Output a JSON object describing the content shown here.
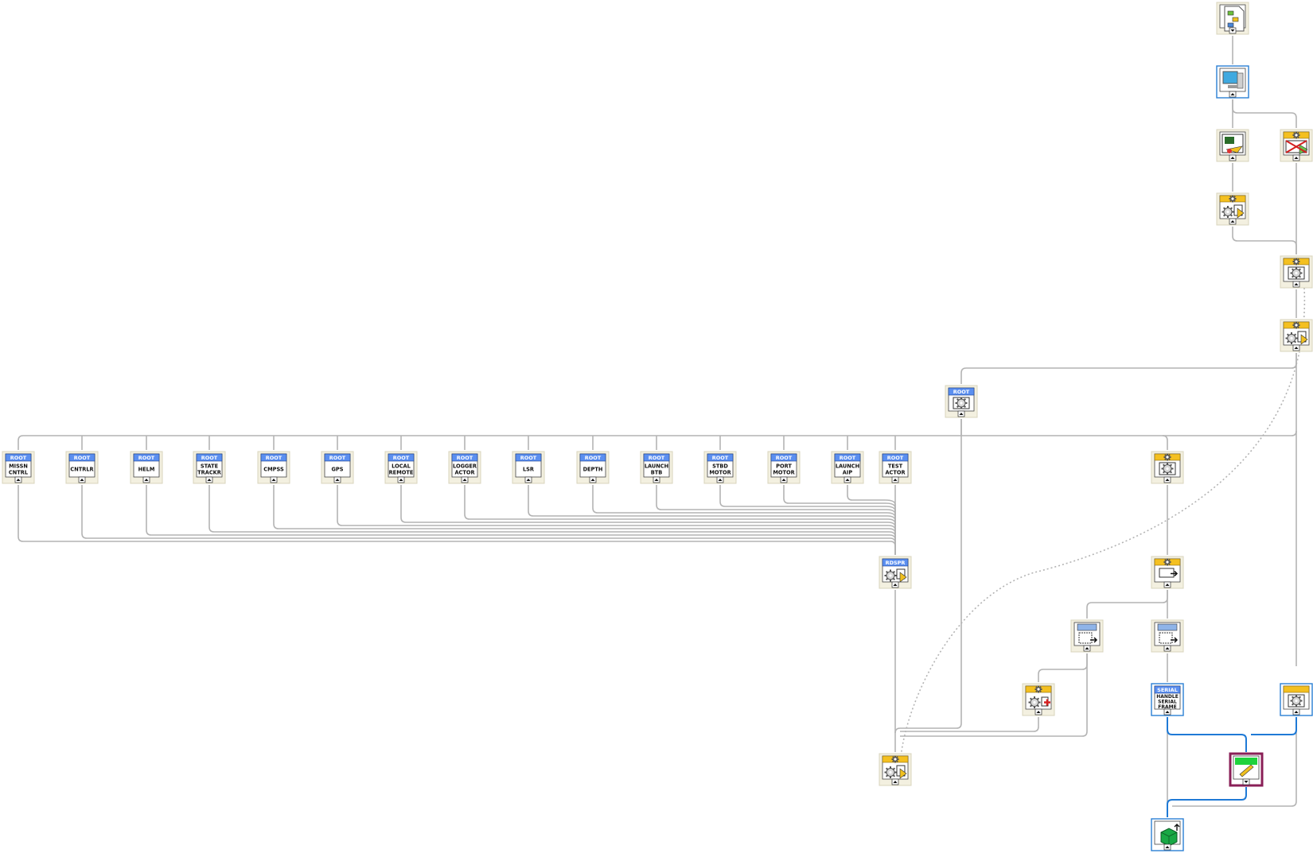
{
  "diagram": {
    "nodes": [
      {
        "id": "n-top-file",
        "label": "",
        "icon": "hierarchy-file-icon",
        "kind": "plain"
      },
      {
        "id": "n-monitor",
        "label": "",
        "icon": "monitor-icon",
        "kind": "blue-border"
      },
      {
        "id": "n-scope",
        "label": "",
        "icon": "scope-vi-icon",
        "kind": "plain"
      },
      {
        "id": "n-crossed",
        "label": "",
        "icon": "crossed-actor-icon",
        "kind": "yellow"
      },
      {
        "id": "n-gear-launch-a",
        "label": "",
        "icon": "gear-launch-icon",
        "kind": "yellow"
      },
      {
        "id": "n-gear-launch-b",
        "label": "",
        "icon": "gear-launch-icon",
        "kind": "yellow"
      },
      {
        "id": "n-gear-core",
        "label": "",
        "icon": "gear-core-icon",
        "kind": "yellow"
      },
      {
        "id": "n-root-mid",
        "header": "ROOT",
        "label": "",
        "icon": "gear-core-icon",
        "kind": "root"
      },
      {
        "id": "n-missn-cntrl",
        "header": "ROOT",
        "label": "MISSN CNTRL",
        "kind": "root"
      },
      {
        "id": "n-cntrlr",
        "header": "ROOT",
        "label": "CNTRLR",
        "kind": "root"
      },
      {
        "id": "n-helm",
        "header": "ROOT",
        "label": "HELM",
        "kind": "root"
      },
      {
        "id": "n-state-trackr",
        "header": "ROOT",
        "label": "STATE TRACKR",
        "kind": "root"
      },
      {
        "id": "n-cmpss",
        "header": "ROOT",
        "label": "CMPSS",
        "kind": "root"
      },
      {
        "id": "n-gps",
        "header": "ROOT",
        "label": "GPS",
        "kind": "root"
      },
      {
        "id": "n-local-remote",
        "header": "ROOT",
        "label": "LOCAL REMOTE",
        "kind": "root"
      },
      {
        "id": "n-logger-actor",
        "header": "ROOT",
        "label": "LOGGER ACTOR",
        "kind": "root"
      },
      {
        "id": "n-lsr",
        "header": "ROOT",
        "label": "LSR",
        "kind": "root"
      },
      {
        "id": "n-depth",
        "header": "ROOT",
        "label": "DEPTH",
        "kind": "root"
      },
      {
        "id": "n-launch-btb",
        "header": "ROOT",
        "label": "LAUNCH BTB",
        "kind": "root"
      },
      {
        "id": "n-stbd-motor",
        "header": "ROOT",
        "label": "STBD MOTOR",
        "kind": "root"
      },
      {
        "id": "n-port-motor",
        "header": "ROOT",
        "label": "PORT MOTOR",
        "kind": "root"
      },
      {
        "id": "n-launch-aip",
        "header": "ROOT",
        "label": "LAUNCH AIP",
        "kind": "root"
      },
      {
        "id": "n-test-actor",
        "header": "ROOT",
        "label": "TEST ACTOR",
        "kind": "root"
      },
      {
        "id": "n-right-gear",
        "label": "",
        "icon": "gear-core-icon",
        "kind": "yellow"
      },
      {
        "id": "n-rdspr",
        "header": "RDSPR",
        "label": "",
        "icon": "gear-launch-icon",
        "kind": "root"
      },
      {
        "id": "n-send-msg",
        "label": "",
        "icon": "send-message-icon",
        "kind": "yellow"
      },
      {
        "id": "n-msg-dashed-a",
        "label": "",
        "icon": "message-arrow-icon",
        "kind": "plain"
      },
      {
        "id": "n-msg-dashed-b",
        "label": "",
        "icon": "message-arrow-icon",
        "kind": "plain"
      },
      {
        "id": "n-gear-stop",
        "label": "",
        "icon": "gear-stop-icon",
        "kind": "yellow"
      },
      {
        "id": "n-serial",
        "header": "SERIAL",
        "label": "HANDLE SERIAL FRAME",
        "kind": "serial"
      },
      {
        "id": "n-right-core",
        "label": "",
        "icon": "gear-core-icon",
        "kind": "blue-yellow"
      },
      {
        "id": "n-bottom-gear",
        "label": "",
        "icon": "gear-launch-icon",
        "kind": "yellow"
      },
      {
        "id": "n-edit",
        "label": "",
        "icon": "edit-pencil-icon",
        "kind": "purple"
      },
      {
        "id": "n-cube",
        "label": "",
        "icon": "green-cube-icon",
        "kind": "blue-border"
      }
    ],
    "colors": {
      "wire": "#b4b4b4",
      "wire_blue": "#1f7ad6",
      "root_header": "#5b8ff0",
      "yellow_header": "#f4c020",
      "node_fill": "#ffffff",
      "node_bg": "#f3f0e0",
      "purple_border": "#8a1f57",
      "blue_border": "#2b7fd4"
    }
  }
}
